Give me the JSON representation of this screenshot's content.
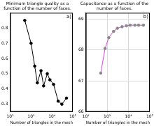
{
  "chart_data": [
    {
      "type": "line",
      "title": "Minimum triangle quality as a function of the number of faces.",
      "xlabel": "Number of triangles in the mesh",
      "annotation": "a)",
      "x": [
        500,
        1000,
        1500,
        2000,
        3000,
        4000,
        6000,
        8000,
        12000,
        20000,
        30000,
        50000
      ],
      "values": [
        0.85,
        0.7,
        0.55,
        0.44,
        0.52,
        0.42,
        0.5,
        0.46,
        0.43,
        0.32,
        0.3,
        0.34
      ],
      "color": "#000000",
      "marker": "circle",
      "log": "x",
      "grid": false,
      "xlim": [
        100,
        100000
      ],
      "xticks": [
        {
          "value": 100,
          "label": "10²"
        },
        {
          "value": 1000,
          "label": "10³"
        },
        {
          "value": 10000,
          "label": "10⁴"
        },
        {
          "value": 100000,
          "label": "10⁵"
        }
      ],
      "ylim": [
        0.25,
        0.9
      ],
      "yticks": [
        0.3,
        0.4,
        0.5,
        0.6,
        0.7,
        0.8
      ]
    },
    {
      "type": "line",
      "title": "Capacitance as a function of the number of faces.",
      "xlabel": "Number of triangles in the mesh",
      "annotation": "b)",
      "x": [
        500,
        800,
        1200,
        2000,
        3000,
        5000,
        8000,
        12000,
        20000,
        30000,
        50000
      ],
      "values": [
        67.25,
        68.05,
        68.4,
        68.6,
        68.7,
        68.75,
        68.78,
        68.8,
        68.8,
        68.8,
        68.8
      ],
      "color": "#e040e0",
      "marker": "circle",
      "log": "x",
      "grid": true,
      "xlim": [
        100,
        100000
      ],
      "xticks": [
        {
          "value": 100,
          "label": "10²"
        },
        {
          "value": 1000,
          "label": "10³"
        },
        {
          "value": 10000,
          "label": "10⁴"
        },
        {
          "value": 100000,
          "label": "10⁵"
        }
      ],
      "ylim": [
        66,
        69.2
      ],
      "yticks": [
        66,
        67,
        68,
        69
      ]
    }
  ]
}
